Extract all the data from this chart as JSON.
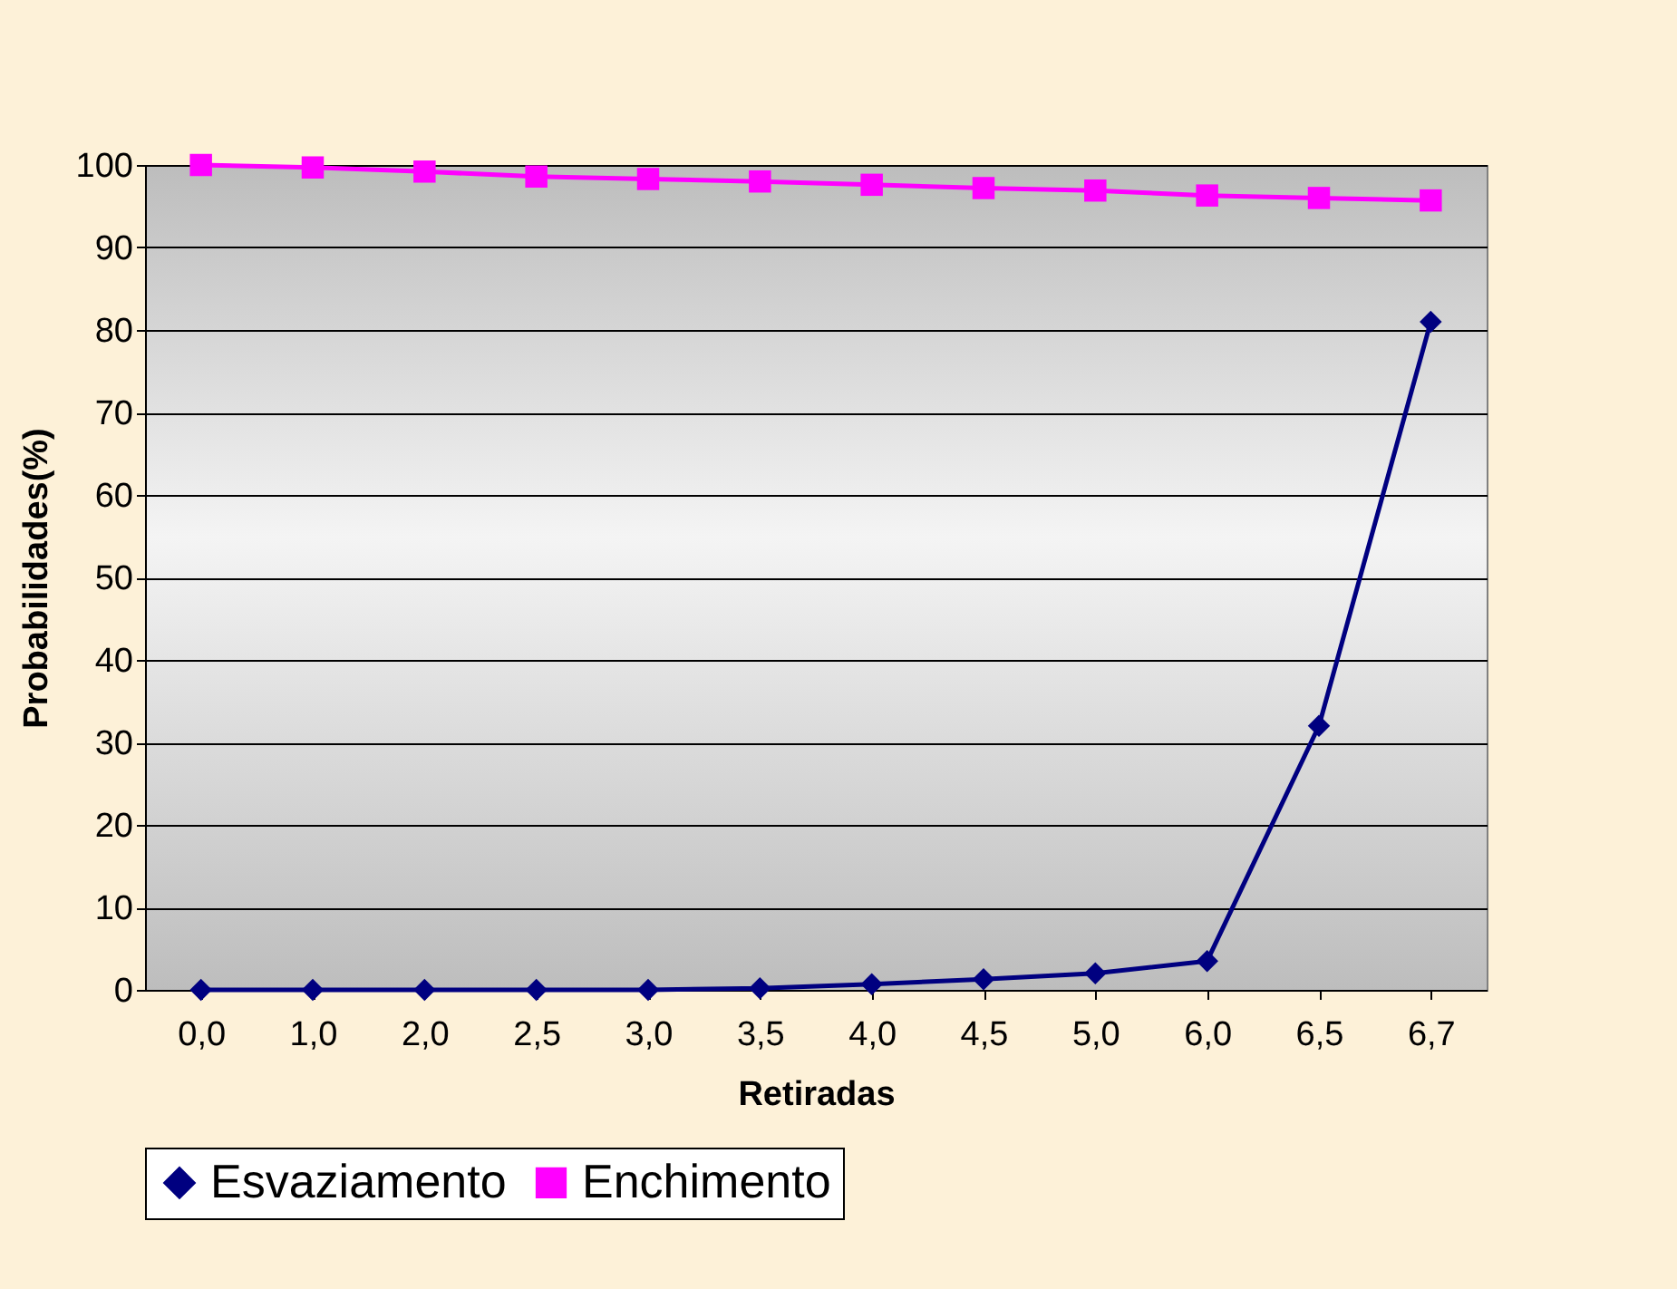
{
  "chart_data": {
    "type": "line",
    "xlabel": "Retiradas",
    "ylabel": "Probabilidades(%)",
    "categories": [
      "0,0",
      "1,0",
      "2,0",
      "2,5",
      "3,0",
      "3,5",
      "4,0",
      "4,5",
      "5,0",
      "6,0",
      "6,5",
      "6,7"
    ],
    "series": [
      {
        "name": "Esvaziamento",
        "color": "#000080",
        "marker": "diamond",
        "values": [
          0,
          0,
          0,
          0,
          0,
          0.2,
          0.7,
          1.3,
          2.0,
          3.5,
          32,
          81
        ]
      },
      {
        "name": "Enchimento",
        "color": "#ff00ff",
        "marker": "square",
        "values": [
          100,
          99.7,
          99.2,
          98.6,
          98.3,
          98,
          97.6,
          97.2,
          96.9,
          96.3,
          96,
          95.7
        ]
      }
    ],
    "ylim": [
      0,
      100
    ],
    "yticks": [
      0,
      10,
      20,
      30,
      40,
      50,
      60,
      70,
      80,
      90,
      100
    ],
    "grid": "y",
    "legend": "bottom"
  }
}
